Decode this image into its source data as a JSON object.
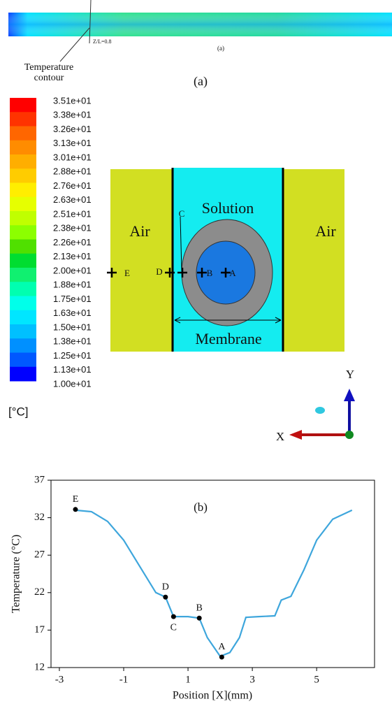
{
  "figure_a": {
    "strip_label": "Z/L=0.8",
    "strip_caption": "(a)",
    "contour_title": [
      "Temperature",
      "contour"
    ],
    "panel_label": "(a)",
    "colorbar": {
      "labels": [
        "3.51e+01",
        "3.38e+01",
        "3.26e+01",
        "3.13e+01",
        "3.01e+01",
        "2.88e+01",
        "2.76e+01",
        "2.63e+01",
        "2.51e+01",
        "2.38e+01",
        "2.26e+01",
        "2.13e+01",
        "2.00e+01",
        "1.88e+01",
        "1.75e+01",
        "1.63e+01",
        "1.50e+01",
        "1.38e+01",
        "1.25e+01",
        "1.13e+01",
        "1.00e+01"
      ],
      "colors": [
        "#ff0000",
        "#ff3300",
        "#ff6600",
        "#ff8c00",
        "#ffae00",
        "#ffcc00",
        "#ffee00",
        "#e6ff00",
        "#c0ff00",
        "#8cff00",
        "#50e000",
        "#00dd30",
        "#10f070",
        "#00ffb0",
        "#00ffea",
        "#00e6ff",
        "#00c0ff",
        "#0090ff",
        "#0058ff",
        "#0000ff"
      ],
      "unit": "[°C]"
    },
    "regions": {
      "air_left": "Air",
      "solution": "Solution",
      "air_right": "Air",
      "membrane": "Membrane"
    },
    "points": [
      "A",
      "B",
      "C",
      "D",
      "E"
    ],
    "axes": {
      "x": "X",
      "y": "Y"
    }
  },
  "chart_data": {
    "type": "line",
    "panel_label": "(b)",
    "x_label": "Position [X](mm)",
    "y_label": "Temperature (°C)",
    "x": [
      -2.5,
      -2.0,
      -1.5,
      -1.0,
      -0.5,
      0.0,
      0.3,
      0.55,
      1.0,
      1.35,
      1.6,
      2.0,
      2.3,
      2.6,
      2.8,
      3.2,
      3.7,
      3.9,
      4.2,
      4.6,
      5.0,
      5.5,
      6.1
    ],
    "values": [
      33.0,
      32.8,
      31.5,
      29.0,
      25.5,
      22.0,
      21.4,
      18.8,
      18.8,
      18.6,
      16.0,
      13.5,
      14.0,
      16.0,
      18.7,
      18.8,
      18.9,
      21.0,
      21.5,
      25.0,
      29.0,
      31.8,
      33.0
    ],
    "color": "#3ea6dc",
    "xlim": [
      -3.26,
      6.8
    ],
    "ylim": [
      12,
      37
    ],
    "xticks": [
      -3,
      -1,
      1,
      3,
      5
    ],
    "yticks": [
      12,
      17,
      22,
      27,
      32,
      37
    ],
    "annotations": [
      {
        "label": "E",
        "x": -2.5,
        "y": 33.1
      },
      {
        "label": "D",
        "x": 0.3,
        "y": 21.4
      },
      {
        "label": "C",
        "x": 0.55,
        "y": 18.8
      },
      {
        "label": "B",
        "x": 1.35,
        "y": 18.6
      },
      {
        "label": "A",
        "x": 2.05,
        "y": 13.4
      }
    ]
  }
}
